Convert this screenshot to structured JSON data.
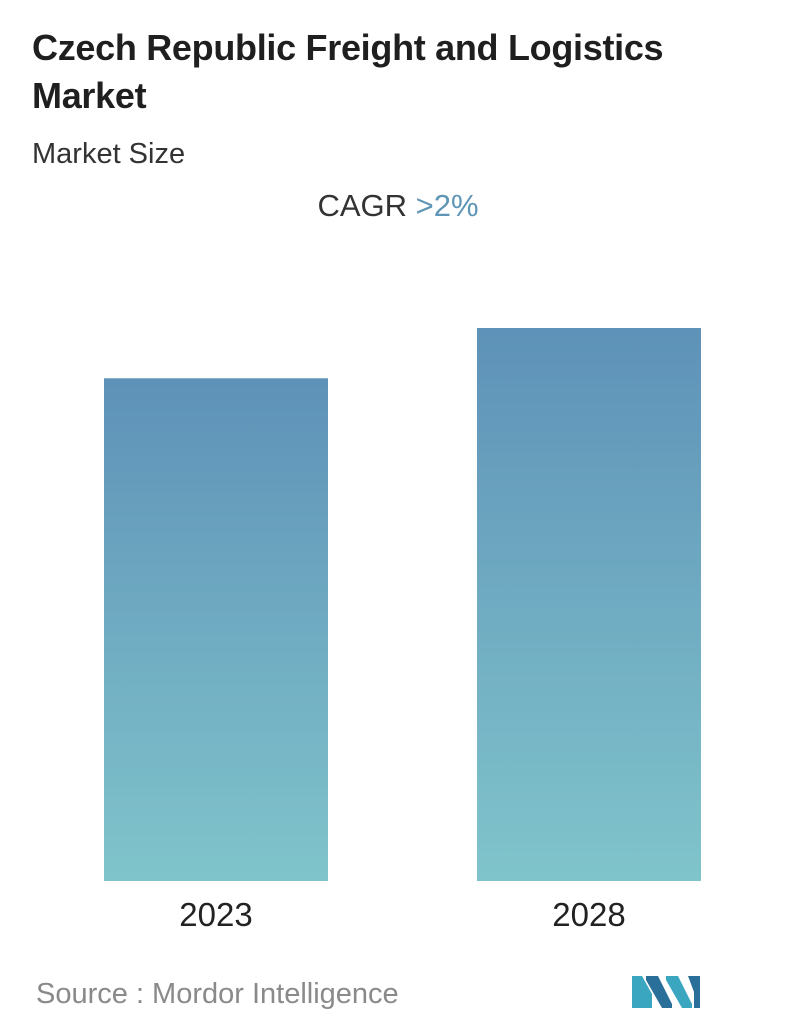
{
  "header": {
    "title": "Czech Republic Freight and Logistics Market",
    "subtitle": "Market Size"
  },
  "cagr": {
    "label": "CAGR",
    "value": ">2%"
  },
  "footer": {
    "source": "Source :  Mordor Intelligence"
  },
  "colors": {
    "bar_top": "#5e92b8",
    "bar_bottom": "#80c4cb",
    "accent": "#5f95b5"
  },
  "chart_data": {
    "type": "bar",
    "categories": [
      "2023",
      "2028"
    ],
    "values": [
      100,
      110
    ],
    "ylim": [
      0,
      110
    ],
    "title": "",
    "xlabel": "",
    "ylabel": "",
    "grid": false,
    "legend": "none"
  }
}
